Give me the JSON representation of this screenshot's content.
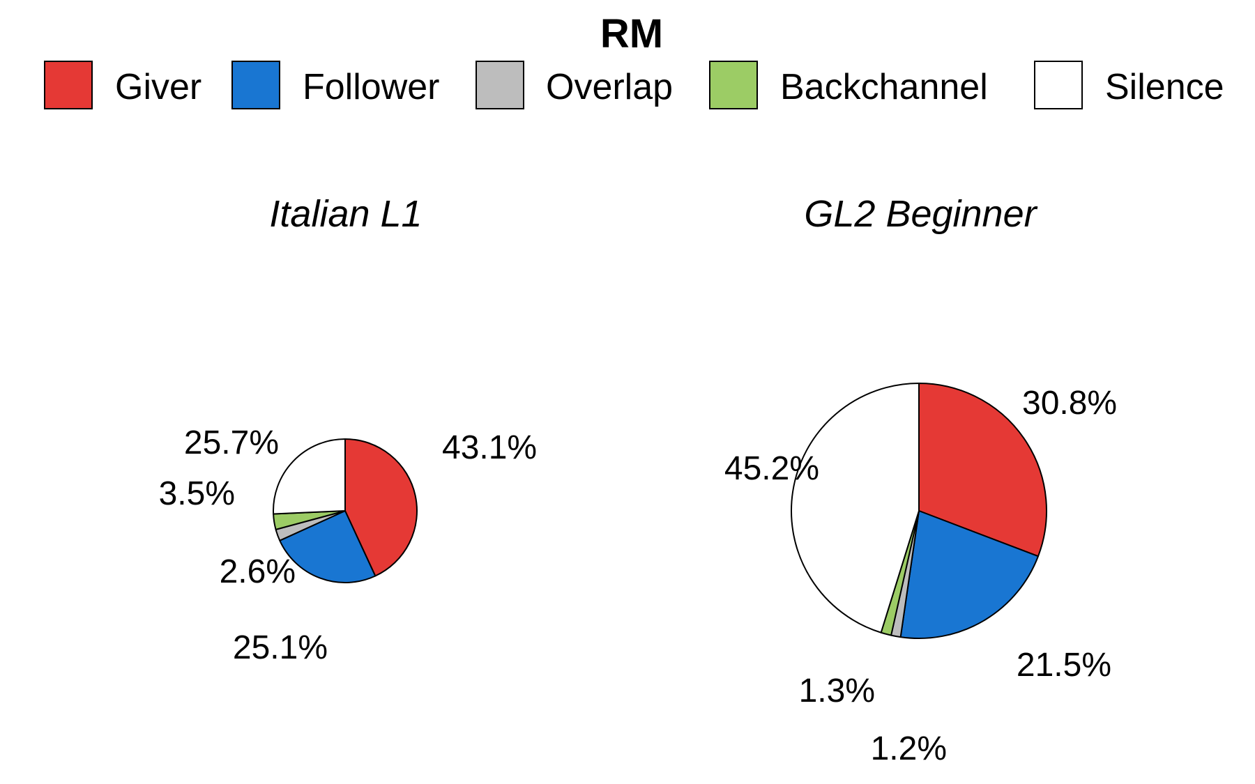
{
  "chart_data": {
    "type": "pie",
    "title": "RM",
    "legend": {
      "placement": "top",
      "entries": [
        {
          "label": "Giver",
          "color": "#E53935"
        },
        {
          "label": "Follower",
          "color": "#1976D2"
        },
        {
          "label": "Overlap",
          "color": "#BDBDBD"
        },
        {
          "label": "Backchannel",
          "color": "#9CCC65"
        },
        {
          "label": "Silence",
          "color": "#FFFFFF"
        }
      ]
    },
    "categories": [
      "Giver",
      "Follower",
      "Overlap",
      "Backchannel",
      "Silence"
    ],
    "pies": [
      {
        "title": "Italian L1",
        "values": [
          43.1,
          25.1,
          2.6,
          3.5,
          25.7
        ],
        "labels": [
          "43.1%",
          "25.1%",
          "2.6%",
          "3.5%",
          "25.7%"
        ]
      },
      {
        "title": "GL2 Beginner",
        "values": [
          30.8,
          21.5,
          1.2,
          1.3,
          45.2
        ],
        "labels": [
          "30.8%",
          "21.5%",
          "1.2%",
          "1.3%",
          "45.2%"
        ]
      }
    ]
  }
}
